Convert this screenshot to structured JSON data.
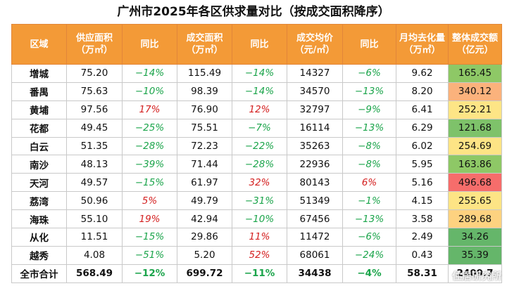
{
  "title": "广州市2025年各区供求量对比（按成交面积降序）",
  "headers": [
    "区域",
    "供应面积\n（万㎡）",
    "同比",
    "成交面积\n（万㎡）",
    "同比",
    "成交均价\n（元/㎡）",
    "同比",
    "月均去化量\n（万㎡）",
    "整体成交额\n（亿元）"
  ],
  "rows": [
    {
      "region": "增城",
      "supply": "75.20",
      "supply_yoy": "−14%",
      "deal": "115.49",
      "deal_yoy": "−14%",
      "price": "14327",
      "price_yoy": "−6%",
      "monthly": "9.62",
      "amount": "165.45",
      "amount_color": "#8ec866"
    },
    {
      "region": "番禺",
      "supply": "75.63",
      "supply_yoy": "−10%",
      "deal": "98.39",
      "deal_yoy": "−14%",
      "price": "34570",
      "price_yoy": "−13%",
      "monthly": "8.20",
      "amount": "340.12",
      "amount_color": "#fbb27c"
    },
    {
      "region": "黄埔",
      "supply": "97.56",
      "supply_yoy": "17%",
      "deal": "76.90",
      "deal_yoy": "12%",
      "price": "32797",
      "price_yoy": "−9%",
      "monthly": "6.41",
      "amount": "252.21",
      "amount_color": "#fde586"
    },
    {
      "region": "花都",
      "supply": "49.45",
      "supply_yoy": "−25%",
      "deal": "75.51",
      "deal_yoy": "−7%",
      "price": "16114",
      "price_yoy": "−13%",
      "monthly": "6.29",
      "amount": "121.68",
      "amount_color": "#7ec26a"
    },
    {
      "region": "白云",
      "supply": "51.35",
      "supply_yoy": "−28%",
      "deal": "72.23",
      "deal_yoy": "−22%",
      "price": "35263",
      "price_yoy": "−8%",
      "monthly": "6.02",
      "amount": "254.69",
      "amount_color": "#fde485"
    },
    {
      "region": "南沙",
      "supply": "48.13",
      "supply_yoy": "−39%",
      "deal": "71.44",
      "deal_yoy": "−28%",
      "price": "22936",
      "price_yoy": "−8%",
      "monthly": "5.95",
      "amount": "163.86",
      "amount_color": "#8ec866"
    },
    {
      "region": "天河",
      "supply": "49.57",
      "supply_yoy": "−15%",
      "deal": "61.97",
      "deal_yoy": "32%",
      "price": "80143",
      "price_yoy": "6%",
      "monthly": "5.16",
      "amount": "496.68",
      "amount_color": "#f66d6b"
    },
    {
      "region": "荔湾",
      "supply": "50.96",
      "supply_yoy": "5%",
      "deal": "49.79",
      "deal_yoy": "−31%",
      "price": "51349",
      "price_yoy": "−1%",
      "monthly": "4.15",
      "amount": "255.65",
      "amount_color": "#fde485"
    },
    {
      "region": "海珠",
      "supply": "55.10",
      "supply_yoy": "19%",
      "deal": "42.94",
      "deal_yoy": "−10%",
      "price": "67456",
      "price_yoy": "−13%",
      "monthly": "3.58",
      "amount": "289.68",
      "amount_color": "#fdd280"
    },
    {
      "region": "从化",
      "supply": "11.51",
      "supply_yoy": "−15%",
      "deal": "29.86",
      "deal_yoy": "11%",
      "price": "11472",
      "price_yoy": "−6%",
      "monthly": "2.49",
      "amount": "34.26",
      "amount_color": "#65b66a"
    },
    {
      "region": "越秀",
      "supply": "4.08",
      "supply_yoy": "−51%",
      "deal": "5.20",
      "deal_yoy": "52%",
      "price": "68061",
      "price_yoy": "−24%",
      "monthly": "0.43",
      "amount": "35.39",
      "amount_color": "#65b66a"
    }
  ],
  "total": {
    "region": "全市合计",
    "supply": "568.49",
    "supply_yoy": "−12%",
    "deal": "699.72",
    "deal_yoy": "−11%",
    "price": "34438",
    "price_yoy": "−4%",
    "monthly": "58.31",
    "amount": "2409.7"
  },
  "watermark": "住居研究所"
}
